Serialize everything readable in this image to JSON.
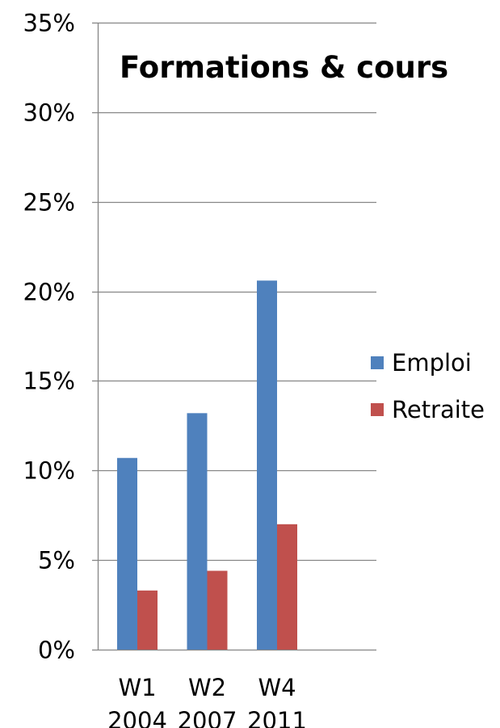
{
  "chart_data": {
    "type": "bar",
    "title": "Formations & cours",
    "xlabel": "",
    "ylabel": "",
    "categories": [
      [
        "W1",
        "2004"
      ],
      [
        "W2",
        "2007"
      ],
      [
        "W4",
        "2011"
      ]
    ],
    "series": [
      {
        "name": "Emploi",
        "color": "#4F81BD",
        "values": [
          0.107,
          0.132,
          0.206
        ]
      },
      {
        "name": "Retraite",
        "color": "#C0504D",
        "values": [
          0.033,
          0.044,
          0.07
        ]
      }
    ],
    "ylim": [
      0,
      0.35
    ],
    "yticks": [
      0,
      0.05,
      0.1,
      0.15,
      0.2,
      0.25,
      0.3,
      0.35
    ],
    "ytick_labels": [
      "0%",
      "5%",
      "10%",
      "15%",
      "20%",
      "25%",
      "30%",
      "35%"
    ],
    "grid": true,
    "legend_position": "right"
  }
}
